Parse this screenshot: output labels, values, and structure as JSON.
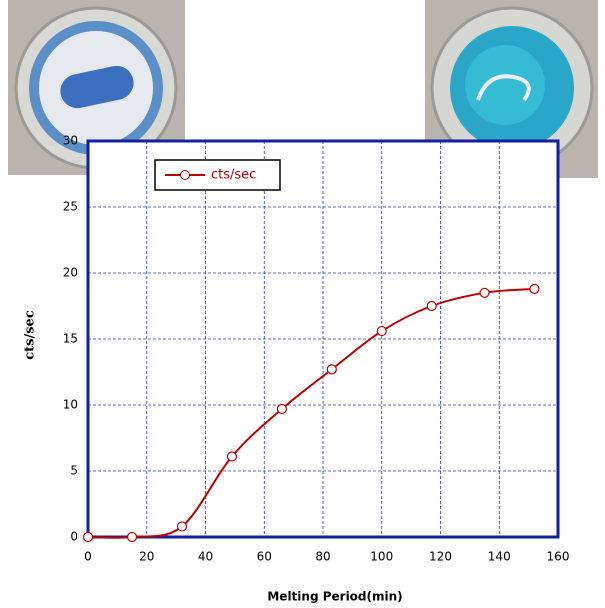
{
  "chart_data": {
    "type": "line",
    "xlabel": "Melting Period(min)",
    "ylabel": "cts/sec",
    "x": [
      0,
      15,
      32,
      49,
      66,
      83,
      100,
      117,
      135,
      152
    ],
    "series": [
      {
        "name": "cts/sec",
        "color": "#c00000",
        "values": [
          0,
          0,
          0.8,
          6.1,
          9.7,
          12.7,
          15.6,
          17.5,
          18.5,
          18.8
        ]
      }
    ],
    "xlim": [
      0,
      160
    ],
    "xticks": [
      0,
      20,
      40,
      60,
      80,
      100,
      120,
      140,
      160
    ],
    "ylim": [
      0,
      30
    ],
    "yticks": [
      0,
      5,
      10,
      15,
      20,
      25,
      30
    ],
    "grid": true,
    "legend": "upper left"
  }
}
